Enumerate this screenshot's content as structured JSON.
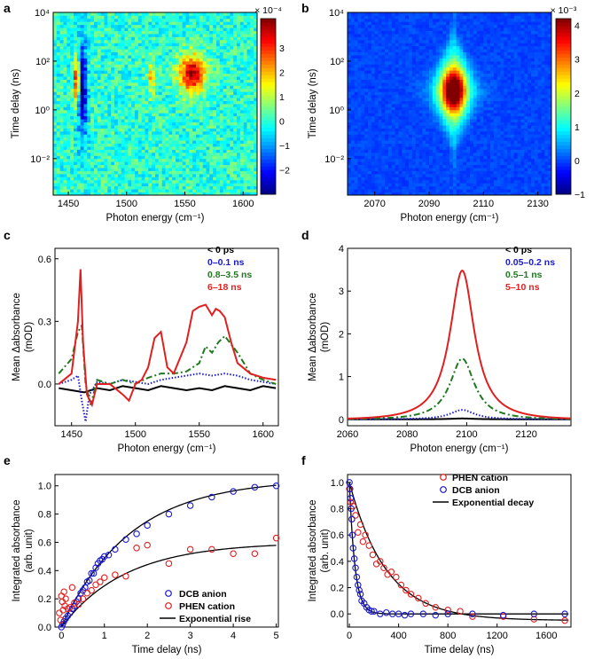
{
  "chart_data": [
    {
      "panel": "a",
      "type": "heatmap",
      "xlabel": "Photon energy (cm⁻¹)",
      "ylabel": "Time delay (ns)",
      "xlim": [
        1437,
        1612
      ],
      "xticks": [
        "1450",
        "1500",
        "1550",
        "1600"
      ],
      "xtick_values": [
        1450,
        1500,
        1550,
        1600
      ],
      "ylim_log10": [
        -3.5,
        4
      ],
      "yticks": [
        "10⁻²",
        "10⁰",
        "10²",
        "10⁴"
      ],
      "ytick_values_log10": [
        -2,
        0,
        2,
        4
      ],
      "colorbar": {
        "label": "× 10⁻⁴",
        "min": -3,
        "max": 4.2,
        "ticks": [
          "−2",
          "−1",
          "0",
          "1",
          "2",
          "3"
        ],
        "tick_values": [
          -2,
          -1,
          0,
          1,
          2,
          3
        ]
      },
      "features": [
        {
          "x": 1457,
          "y_log10": 1.2,
          "amplitude": 3.4,
          "sx": 2,
          "sy": 0.7
        },
        {
          "x": 1462,
          "y_log10": 0.8,
          "amplitude": -2.6,
          "sx": 3,
          "sy": 1.5
        },
        {
          "x": 1521,
          "y_log10": 1.3,
          "amplitude": 1.8,
          "sx": 2,
          "sy": 0.5
        },
        {
          "x": 1556,
          "y_log10": 1.5,
          "amplitude": 3.8,
          "sx": 8,
          "sy": 0.55
        }
      ]
    },
    {
      "panel": "b",
      "type": "heatmap",
      "xlabel": "Photon energy (cm⁻¹)",
      "ylabel": "Time delay (ns)",
      "xlim": [
        2060,
        2135
      ],
      "xticks": [
        "2070",
        "2090",
        "2110",
        "2130"
      ],
      "xtick_values": [
        2070,
        2090,
        2110,
        2130
      ],
      "ylim_log10": [
        -3.5,
        4
      ],
      "yticks": [
        "10⁻²",
        "10⁰",
        "10²",
        "10⁴"
      ],
      "ytick_values_log10": [
        -2,
        0,
        2,
        4
      ],
      "colorbar": {
        "label": "× 10⁻³",
        "min": -1,
        "max": 4.2,
        "ticks": [
          "−1",
          "0",
          "1",
          "2",
          "3",
          "4"
        ],
        "tick_values": [
          -1,
          0,
          1,
          2,
          3,
          4
        ]
      },
      "features": [
        {
          "x": 2099,
          "y_log10": 0.8,
          "amplitude": 3.8,
          "sx": 3,
          "sy": 0.6
        }
      ]
    },
    {
      "panel": "c",
      "type": "line",
      "xlabel": "Photon energy (cm⁻¹)",
      "ylabel": "Mean Δabsorbance (mOD)",
      "ylabel_lines": [
        "Mean Δabsorbance",
        "(mOD)"
      ],
      "xlim": [
        1437,
        1612
      ],
      "ylim": [
        -0.2,
        0.65
      ],
      "xticks": [
        "1450",
        "1500",
        "1550",
        "1600"
      ],
      "xtick_values": [
        1450,
        1500,
        1550,
        1600
      ],
      "yticks": [
        "0.0",
        "0.3",
        "0.6"
      ],
      "ytick_values": [
        0,
        0.3,
        0.6
      ],
      "series": [
        {
          "name": "< 0 ps",
          "color": "#000000",
          "style": "solid",
          "x": [
            1440,
            1450,
            1460,
            1470,
            1480,
            1490,
            1500,
            1510,
            1520,
            1530,
            1540,
            1550,
            1560,
            1570,
            1580,
            1590,
            1600,
            1610
          ],
          "y": [
            -0.02,
            -0.03,
            -0.04,
            -0.02,
            -0.03,
            -0.01,
            -0.02,
            -0.03,
            -0.01,
            -0.02,
            -0.03,
            -0.02,
            -0.03,
            -0.01,
            -0.02,
            -0.03,
            -0.01,
            -0.02
          ]
        },
        {
          "name": "0–0.1 ns",
          "color": "#1a1acc",
          "style": "dotted",
          "x": [
            1440,
            1450,
            1455,
            1458,
            1461,
            1464,
            1470,
            1480,
            1490,
            1500,
            1510,
            1520,
            1530,
            1540,
            1550,
            1560,
            1570,
            1580,
            1590,
            1600,
            1610
          ],
          "y": [
            0.0,
            0.02,
            0.04,
            -0.08,
            -0.18,
            -0.05,
            0.01,
            0.0,
            0.02,
            0.01,
            0.0,
            0.02,
            0.03,
            0.04,
            0.05,
            0.04,
            0.05,
            0.04,
            0.02,
            0.01,
            0.0
          ]
        },
        {
          "name": "0.8–3.5 ns",
          "color": "#1f7a1f",
          "style": "dashdot",
          "x": [
            1440,
            1450,
            1455,
            1458,
            1461,
            1465,
            1470,
            1480,
            1490,
            1500,
            1510,
            1520,
            1530,
            1540,
            1550,
            1555,
            1560,
            1565,
            1570,
            1580,
            1590,
            1600,
            1610
          ],
          "y": [
            0.05,
            0.12,
            0.25,
            0.28,
            0.0,
            -0.1,
            0.02,
            0.0,
            0.02,
            0.0,
            0.03,
            0.05,
            0.05,
            0.06,
            0.1,
            0.18,
            0.15,
            0.2,
            0.23,
            0.15,
            0.05,
            0.02,
            0.0
          ]
        },
        {
          "name": "6–18 ns",
          "color": "#e02020",
          "style": "solid",
          "x": [
            1440,
            1450,
            1455,
            1457,
            1459,
            1462,
            1466,
            1470,
            1480,
            1490,
            1495,
            1500,
            1505,
            1510,
            1515,
            1520,
            1525,
            1530,
            1540,
            1545,
            1550,
            1555,
            1560,
            1563,
            1566,
            1570,
            1575,
            1580,
            1590,
            1600,
            1610
          ],
          "y": [
            0.0,
            0.05,
            0.3,
            0.55,
            0.2,
            -0.05,
            -0.1,
            0.0,
            0.0,
            -0.05,
            -0.08,
            0.0,
            0.02,
            0.08,
            0.22,
            0.25,
            0.08,
            0.05,
            0.2,
            0.35,
            0.37,
            0.38,
            0.33,
            0.36,
            0.35,
            0.32,
            0.2,
            0.1,
            0.05,
            0.03,
            0.02
          ]
        }
      ]
    },
    {
      "panel": "d",
      "type": "line",
      "xlabel": "Photon energy (cm⁻¹)",
      "ylabel": "Mean Δabsorbance (mOD)",
      "ylabel_lines": [
        "Mean Δabsorbance",
        "(mOD)"
      ],
      "xlim": [
        2060,
        2135
      ],
      "ylim": [
        -0.15,
        4
      ],
      "xticks": [
        "2060",
        "2080",
        "2100",
        "2120"
      ],
      "xtick_values": [
        2060,
        2080,
        2100,
        2120
      ],
      "yticks": [
        "0",
        "1",
        "2",
        "3",
        "4"
      ],
      "ytick_values": [
        0,
        1,
        2,
        3,
        4
      ],
      "peak_center": 2098.5,
      "series": [
        {
          "name": "< 0 ps",
          "color": "#000000",
          "style": "solid",
          "amplitude": 0.02,
          "width": 5
        },
        {
          "name": "0.05–0.2 ns",
          "color": "#1a1acc",
          "style": "dotted",
          "amplitude": 0.22,
          "width": 5
        },
        {
          "name": "0.5–1 ns",
          "color": "#1f7a1f",
          "style": "dashdot",
          "amplitude": 1.42,
          "width": 5
        },
        {
          "name": "5–10 ns",
          "color": "#e02020",
          "style": "solid",
          "amplitude": 3.48,
          "width": 5
        }
      ]
    },
    {
      "panel": "e",
      "type": "scatter",
      "xlabel": "Time delay (ns)",
      "ylabel": "Integrated absorbance (arb. unit)",
      "ylabel_lines": [
        "Integrated absorbance",
        "(arb. unit)"
      ],
      "xlim": [
        -0.15,
        5.05
      ],
      "ylim": [
        0,
        1.08
      ],
      "xticks": [
        "0",
        "1",
        "2",
        "3",
        "4",
        "5"
      ],
      "xtick_values": [
        0,
        1,
        2,
        3,
        4,
        5
      ],
      "yticks": [
        "0.0",
        "0.2",
        "0.4",
        "0.6",
        "0.8",
        "1.0"
      ],
      "ytick_values": [
        0,
        0.2,
        0.4,
        0.6,
        0.8,
        1.0
      ],
      "series": [
        {
          "name": "DCB anion",
          "color": "#1a1acc",
          "marker": "circle",
          "x": [
            0.0,
            0.03,
            0.06,
            0.1,
            0.15,
            0.2,
            0.25,
            0.3,
            0.35,
            0.4,
            0.45,
            0.5,
            0.55,
            0.6,
            0.65,
            0.7,
            0.75,
            0.8,
            0.85,
            0.9,
            0.95,
            1.0,
            1.1,
            1.25,
            1.5,
            1.75,
            2.0,
            2.5,
            3.0,
            3.5,
            4.0,
            4.5,
            5.0
          ],
          "y": [
            0.0,
            0.02,
            0.04,
            0.06,
            0.08,
            0.1,
            0.13,
            0.15,
            0.18,
            0.2,
            0.24,
            0.26,
            0.28,
            0.32,
            0.33,
            0.38,
            0.38,
            0.42,
            0.45,
            0.47,
            0.48,
            0.5,
            0.51,
            0.55,
            0.62,
            0.66,
            0.72,
            0.8,
            0.86,
            0.92,
            0.96,
            0.99,
            1.0
          ]
        },
        {
          "name": "PHEN cation",
          "color": "#e02020",
          "marker": "circle",
          "x": [
            -0.05,
            -0.02,
            0.0,
            0.02,
            0.04,
            0.06,
            0.08,
            0.1,
            0.15,
            0.2,
            0.25,
            0.3,
            0.4,
            0.5,
            0.6,
            0.7,
            0.8,
            0.9,
            1.0,
            1.25,
            1.5,
            1.75,
            2.0,
            2.5,
            3.0,
            3.5,
            4.0,
            4.5,
            5.0
          ],
          "y": [
            0.1,
            0.05,
            0.22,
            0.18,
            0.12,
            0.25,
            0.15,
            0.2,
            0.13,
            0.14,
            0.28,
            0.17,
            0.16,
            0.2,
            0.24,
            0.26,
            0.3,
            0.32,
            0.35,
            0.37,
            0.36,
            0.56,
            0.58,
            0.45,
            0.55,
            0.55,
            0.52,
            0.52,
            0.63
          ]
        }
      ],
      "fits": [
        {
          "name": "Exponential rise",
          "color": "#000000",
          "amplitude": 1.05,
          "tau": 1.6
        },
        {
          "color": "#000000",
          "amplitude": 0.6,
          "tau": 1.5
        }
      ]
    },
    {
      "panel": "f",
      "type": "scatter",
      "xlabel": "Time delay (ns)",
      "ylabel": "Integrated absorbance (arb. unit)",
      "ylabel_lines": [
        "Integrated absorbance",
        "(arb. unit)"
      ],
      "xlim": [
        -15,
        1800
      ],
      "ylim": [
        -0.1,
        1.06
      ],
      "xticks": [
        "0",
        "400",
        "800",
        "1200",
        "1600"
      ],
      "xtick_values": [
        0,
        400,
        800,
        1200,
        1600
      ],
      "yticks": [
        "0.0",
        "0.2",
        "0.4",
        "0.6",
        "0.8",
        "1.0"
      ],
      "ytick_values": [
        0,
        0.2,
        0.4,
        0.6,
        0.8,
        1.0
      ],
      "series": [
        {
          "name": "PHEN cation",
          "color": "#e02020",
          "marker": "circle",
          "x": [
            0,
            10,
            20,
            30,
            50,
            70,
            90,
            110,
            130,
            160,
            190,
            220,
            250,
            280,
            310,
            340,
            380,
            420,
            460,
            500,
            560,
            620,
            700,
            800,
            900,
            1000,
            1250,
            1500,
            1750
          ],
          "y": [
            0.95,
            0.85,
            0.72,
            0.82,
            0.75,
            0.62,
            0.68,
            0.55,
            0.6,
            0.52,
            0.45,
            0.38,
            0.4,
            0.35,
            0.3,
            0.32,
            0.28,
            0.22,
            0.18,
            0.15,
            0.12,
            0.08,
            0.05,
            0.03,
            0.02,
            -0.02,
            -0.02,
            -0.04,
            -0.05
          ]
        },
        {
          "name": "DCB anion",
          "color": "#1a1acc",
          "marker": "circle",
          "x": [
            0,
            5,
            10,
            15,
            20,
            25,
            30,
            40,
            50,
            60,
            70,
            80,
            90,
            100,
            120,
            140,
            160,
            180,
            200,
            250,
            300,
            350,
            400,
            450,
            500,
            600,
            700,
            800,
            1000,
            1250,
            1500,
            1750
          ],
          "y": [
            1.0,
            0.95,
            0.88,
            0.8,
            0.72,
            0.6,
            0.5,
            0.42,
            0.35,
            0.28,
            0.22,
            0.18,
            0.15,
            0.1,
            0.08,
            0.05,
            0.03,
            0.02,
            0.02,
            0.0,
            0.01,
            0.0,
            0.0,
            -0.01,
            0.0,
            0.0,
            -0.01,
            0.0,
            0.0,
            -0.01,
            0.0,
            0.0
          ]
        }
      ],
      "fits": [
        {
          "name": "Exponential decay",
          "color": "#000000",
          "amplitude": 1.0,
          "tau": 45,
          "offset": 0.0
        },
        {
          "color": "#000000",
          "amplitude": 1.05,
          "tau": 300,
          "offset": -0.05
        }
      ]
    }
  ],
  "legends": {
    "c": [
      "< 0 ps",
      "0–0.1 ns",
      "0.8–3.5 ns",
      "6–18 ns"
    ],
    "d": [
      "< 0 ps",
      "0.05–0.2 ns",
      "0.5–1 ns",
      "5–10 ns"
    ],
    "e": [
      "DCB anion",
      "PHEN cation",
      "Exponential rise"
    ],
    "f": [
      "PHEN cation",
      "DCB anion",
      "Exponential decay"
    ]
  },
  "panel_labels": [
    "a",
    "b",
    "c",
    "d",
    "e",
    "f"
  ]
}
